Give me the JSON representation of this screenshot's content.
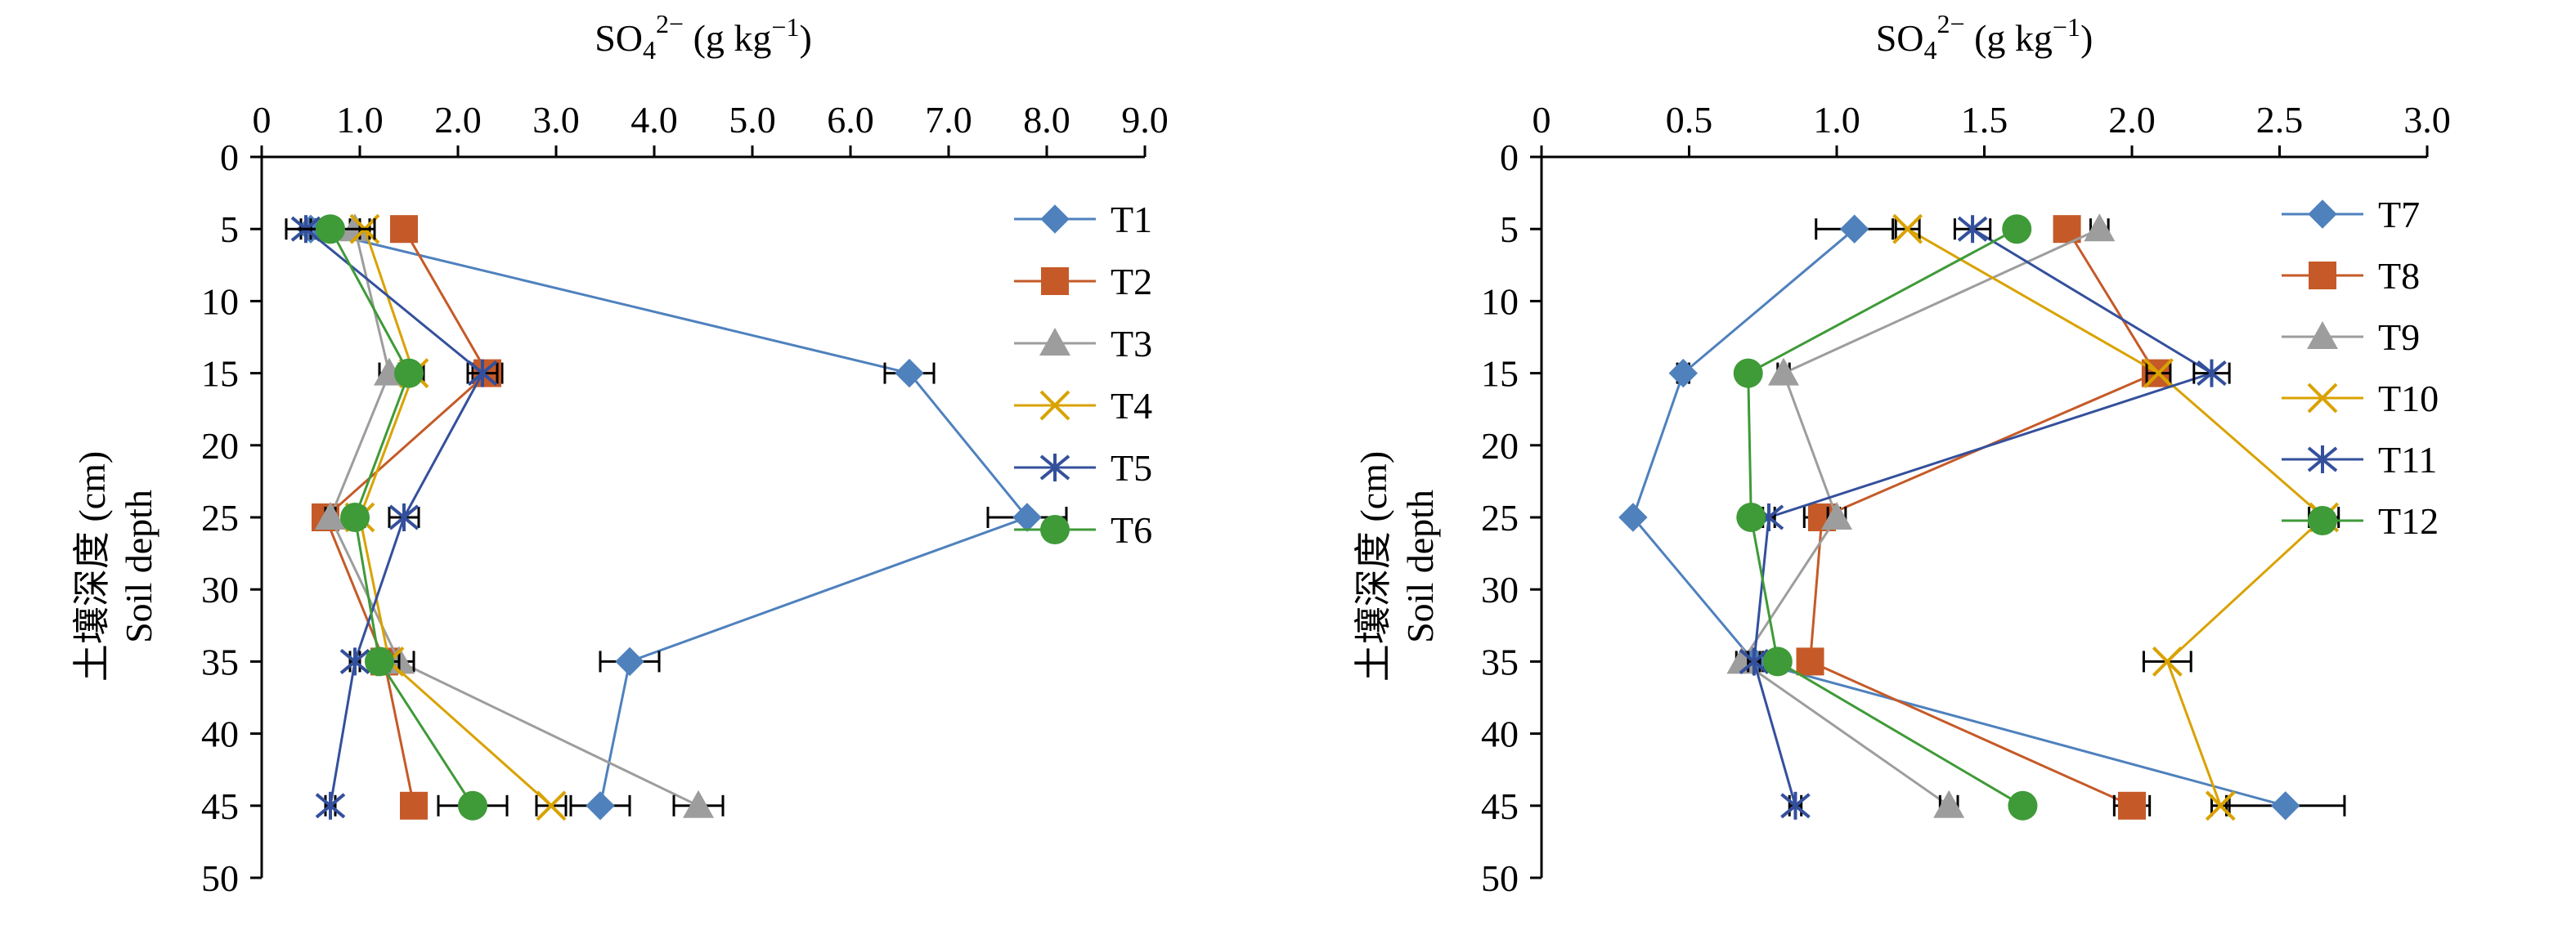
{
  "colors": {
    "blue": "#4f81bd",
    "orange": "#c55a28",
    "gray": "#9d9d9d",
    "gold": "#d9a200",
    "navy": "#34509c",
    "green": "#3f9a38"
  },
  "chart_data": [
    {
      "type": "line",
      "orientation": "depth-profile",
      "xlabel_parts": {
        "base": "SO",
        "sub": "4",
        "sup": "2−",
        "rest": " (g kg",
        "rest_sup": "−1",
        "close": ")"
      },
      "ylabel_line1": "土壤深度 (cm)",
      "ylabel_line2": "Soil depth",
      "xlim": [
        0,
        9
      ],
      "xticks": [
        "0",
        "1.0",
        "2.0",
        "3.0",
        "4.0",
        "5.0",
        "6.0",
        "7.0",
        "8.0",
        "9.0"
      ],
      "ylim": [
        0,
        50
      ],
      "yticks": [
        "0",
        "5",
        "10",
        "15",
        "20",
        "25",
        "30",
        "35",
        "40",
        "45",
        "50"
      ],
      "depths": [
        5,
        15,
        25,
        35,
        45
      ],
      "legend_position": "right",
      "series": [
        {
          "name": "T1",
          "color_key": "blue",
          "marker": "diamond",
          "values": [
            0.5,
            6.6,
            7.8,
            3.75,
            3.45
          ],
          "errors": [
            0.05,
            0.25,
            0.4,
            0.3,
            0.3
          ]
        },
        {
          "name": "T2",
          "color_key": "orange",
          "marker": "square",
          "values": [
            1.45,
            2.3,
            0.65,
            1.25,
            1.55
          ],
          "errors": [
            0.05,
            0.15,
            0.05,
            0.1,
            0.05
          ]
        },
        {
          "name": "T3",
          "color_key": "gray",
          "marker": "triangle",
          "values": [
            0.95,
            1.3,
            0.7,
            1.4,
            4.45
          ],
          "errors": [
            0.05,
            0.1,
            0.05,
            0.15,
            0.25
          ]
        },
        {
          "name": "T4",
          "color_key": "gold",
          "marker": "x",
          "values": [
            1.05,
            1.55,
            1.0,
            1.3,
            2.95
          ],
          "errors": [
            0.05,
            0.1,
            0.05,
            0.1,
            0.15
          ]
        },
        {
          "name": "T5",
          "color_key": "navy",
          "marker": "star",
          "values": [
            0.45,
            2.25,
            1.45,
            0.95,
            0.7
          ],
          "errors": [
            0.05,
            0.15,
            0.15,
            0.05,
            0.05
          ]
        },
        {
          "name": "T6",
          "color_key": "green",
          "marker": "circle",
          "values": [
            0.7,
            1.5,
            0.95,
            1.2,
            2.15
          ],
          "errors": [
            0.45,
            0.05,
            0.05,
            0.1,
            0.35
          ]
        }
      ]
    },
    {
      "type": "line",
      "orientation": "depth-profile",
      "xlabel_parts": {
        "base": "SO",
        "sub": "4",
        "sup": "2−",
        "rest": " (g kg",
        "rest_sup": "−1",
        "close": ")"
      },
      "ylabel_line1": "土壤深度 (cm)",
      "ylabel_line2": "Soil depth",
      "xlim": [
        0,
        3
      ],
      "xticks": [
        "0",
        "0.5",
        "1.0",
        "1.5",
        "2.0",
        "2.5",
        "3.0"
      ],
      "ylim": [
        0,
        50
      ],
      "yticks": [
        "0",
        "5",
        "10",
        "15",
        "20",
        "25",
        "30",
        "35",
        "40",
        "45",
        "50"
      ],
      "depths": [
        5,
        15,
        25,
        35,
        45
      ],
      "legend_position": "right",
      "series": [
        {
          "name": "T7",
          "color_key": "blue",
          "marker": "diamond",
          "values": [
            1.06,
            0.48,
            0.31,
            0.72,
            2.52
          ],
          "errors": [
            0.13,
            0.02,
            0.01,
            0.03,
            0.2
          ]
        },
        {
          "name": "T8",
          "color_key": "orange",
          "marker": "square",
          "values": [
            1.78,
            2.08,
            0.95,
            0.91,
            2.0
          ],
          "errors": [
            0.03,
            0.03,
            0.06,
            0.03,
            0.06
          ]
        },
        {
          "name": "T9",
          "color_key": "gray",
          "marker": "triangle",
          "values": [
            1.89,
            0.82,
            1.0,
            0.68,
            1.38
          ],
          "errors": [
            0.03,
            0.02,
            0.03,
            0.02,
            0.03
          ]
        },
        {
          "name": "T10",
          "color_key": "gold",
          "marker": "x",
          "values": [
            1.24,
            2.09,
            2.65,
            2.12,
            2.3
          ],
          "errors": [
            0.04,
            0.04,
            0.05,
            0.08,
            0.03
          ]
        },
        {
          "name": "T11",
          "color_key": "navy",
          "marker": "star",
          "values": [
            1.46,
            2.27,
            0.77,
            0.72,
            0.86
          ],
          "errors": [
            0.06,
            0.06,
            0.02,
            0.02,
            0.02
          ]
        },
        {
          "name": "T12",
          "color_key": "green",
          "marker": "circle",
          "values": [
            1.61,
            0.7,
            0.71,
            0.8,
            1.63
          ],
          "errors": [
            0.02,
            0.02,
            0.02,
            0.02,
            0.02
          ]
        }
      ]
    }
  ]
}
